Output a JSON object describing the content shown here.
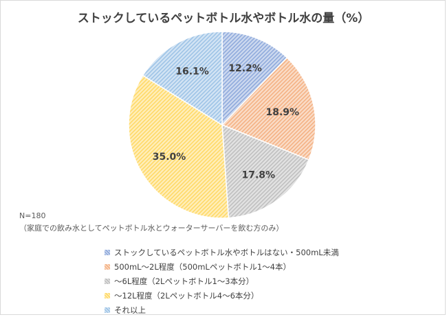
{
  "chart_data": {
    "type": "pie",
    "title": "ストックしているペットボトル水やボトル水の量（%）",
    "start": "12 o'clock, clockwise",
    "series": [
      {
        "name": "ストックしているペットボトル水やボトルはない・500mL未満",
        "value": 12.2,
        "label": "12.2%",
        "color": "#8faadc"
      },
      {
        "name": "500mL～2L程度（500mLペットボトル1～4本）",
        "value": 18.9,
        "label": "18.9%",
        "color": "#f4b183"
      },
      {
        "name": "～6L程度（2Lペットボトル1～3本分）",
        "value": 17.8,
        "label": "17.8%",
        "color": "#bfbfbf"
      },
      {
        "name": "～12L程度（2Lペットボトル4～6本分）",
        "value": 35.0,
        "label": "35.0%",
        "color": "#ffd966"
      },
      {
        "name": "それ以上",
        "value": 16.1,
        "label": "16.1%",
        "color": "#9dc3e6"
      }
    ]
  },
  "notes": {
    "sample": "N=180",
    "condition": "（家庭での飲み水としてペットボトル水とウォーターサーバーを飲む方のみ）"
  }
}
